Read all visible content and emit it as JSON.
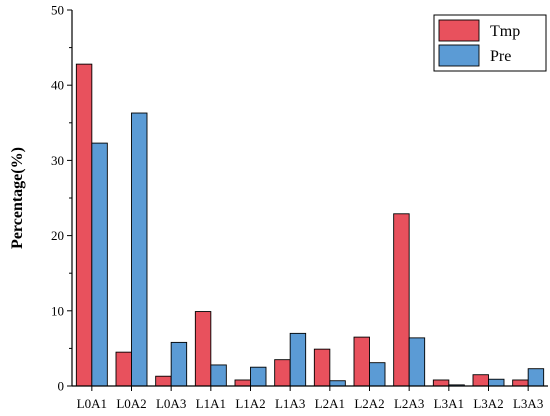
{
  "chart_data": {
    "type": "bar",
    "title": "",
    "xlabel": "",
    "ylabel": "Percentage(%)",
    "ylim": [
      0,
      50
    ],
    "yticks": [
      0,
      10,
      20,
      30,
      40,
      50
    ],
    "grid": false,
    "legend_position": "top-right",
    "categories": [
      "L0A1",
      "L0A2",
      "L0A3",
      "L1A1",
      "L1A2",
      "L1A3",
      "L2A1",
      "L2A2",
      "L2A3",
      "L3A1",
      "L3A2",
      "L3A3"
    ],
    "series": [
      {
        "name": "Tmp",
        "color": "#e8515d",
        "values": [
          42.8,
          4.5,
          1.3,
          9.9,
          0.8,
          3.5,
          4.9,
          6.5,
          22.9,
          0.8,
          1.5,
          0.8
        ]
      },
      {
        "name": "Pre",
        "color": "#5b9bd5",
        "values": [
          32.3,
          36.3,
          5.8,
          2.8,
          2.5,
          7.0,
          0.7,
          3.1,
          6.4,
          0.15,
          0.9,
          2.3
        ]
      }
    ]
  }
}
